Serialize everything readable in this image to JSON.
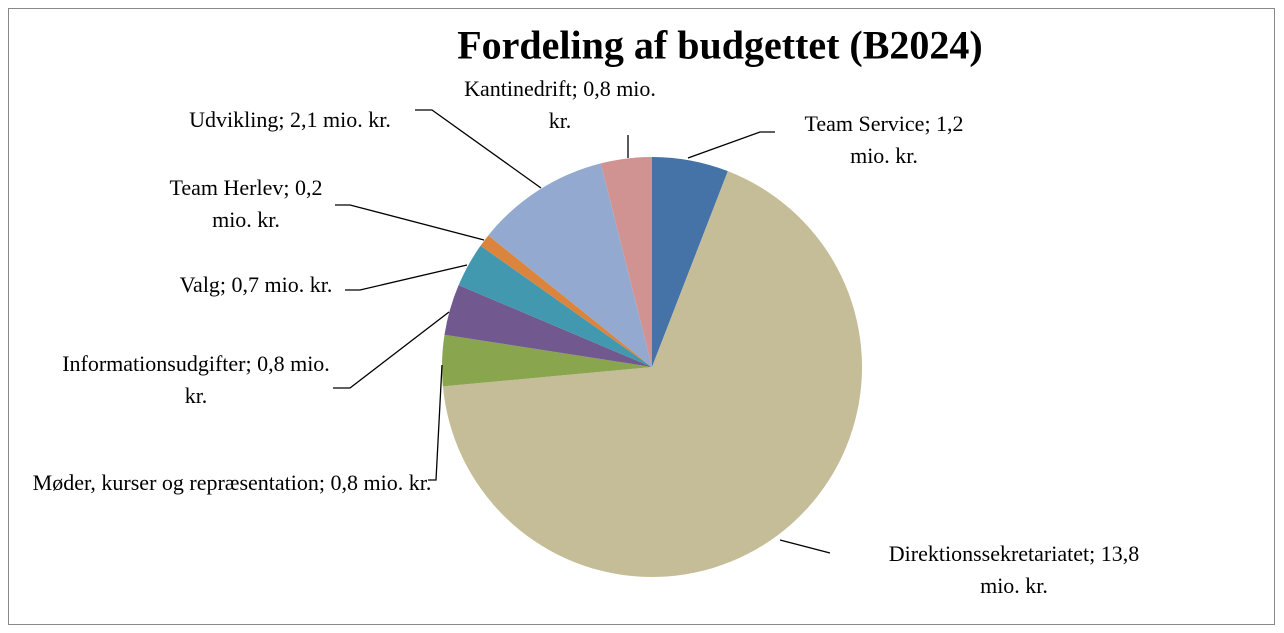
{
  "chart_data": {
    "type": "pie",
    "title": "Fordeling af budgettet (B2024)",
    "values": [
      1.2,
      13.8,
      0.8,
      0.8,
      0.7,
      0.2,
      2.1,
      0.8
    ],
    "value_labels": [
      "Team Service; 1,2 mio. kr.",
      "Direktionssekretariatet; 13,8 mio. kr.",
      "Møder, kurser og repræsentation; 0,8 mio. kr.",
      "Informationsudgifter; 0,8 mio. kr.",
      "Valg; 0,7 mio. kr.",
      "Team Herlev; 0,2 mio. kr.",
      "Udvikling; 2,1 mio. kr.",
      "Kantinedrift; 0,8 mio. kr."
    ],
    "colors": [
      "#4573a7",
      "#c4bd97",
      "#89a54e",
      "#71588f",
      "#4198af",
      "#db843d",
      "#93a9cf",
      "#d19392"
    ]
  }
}
